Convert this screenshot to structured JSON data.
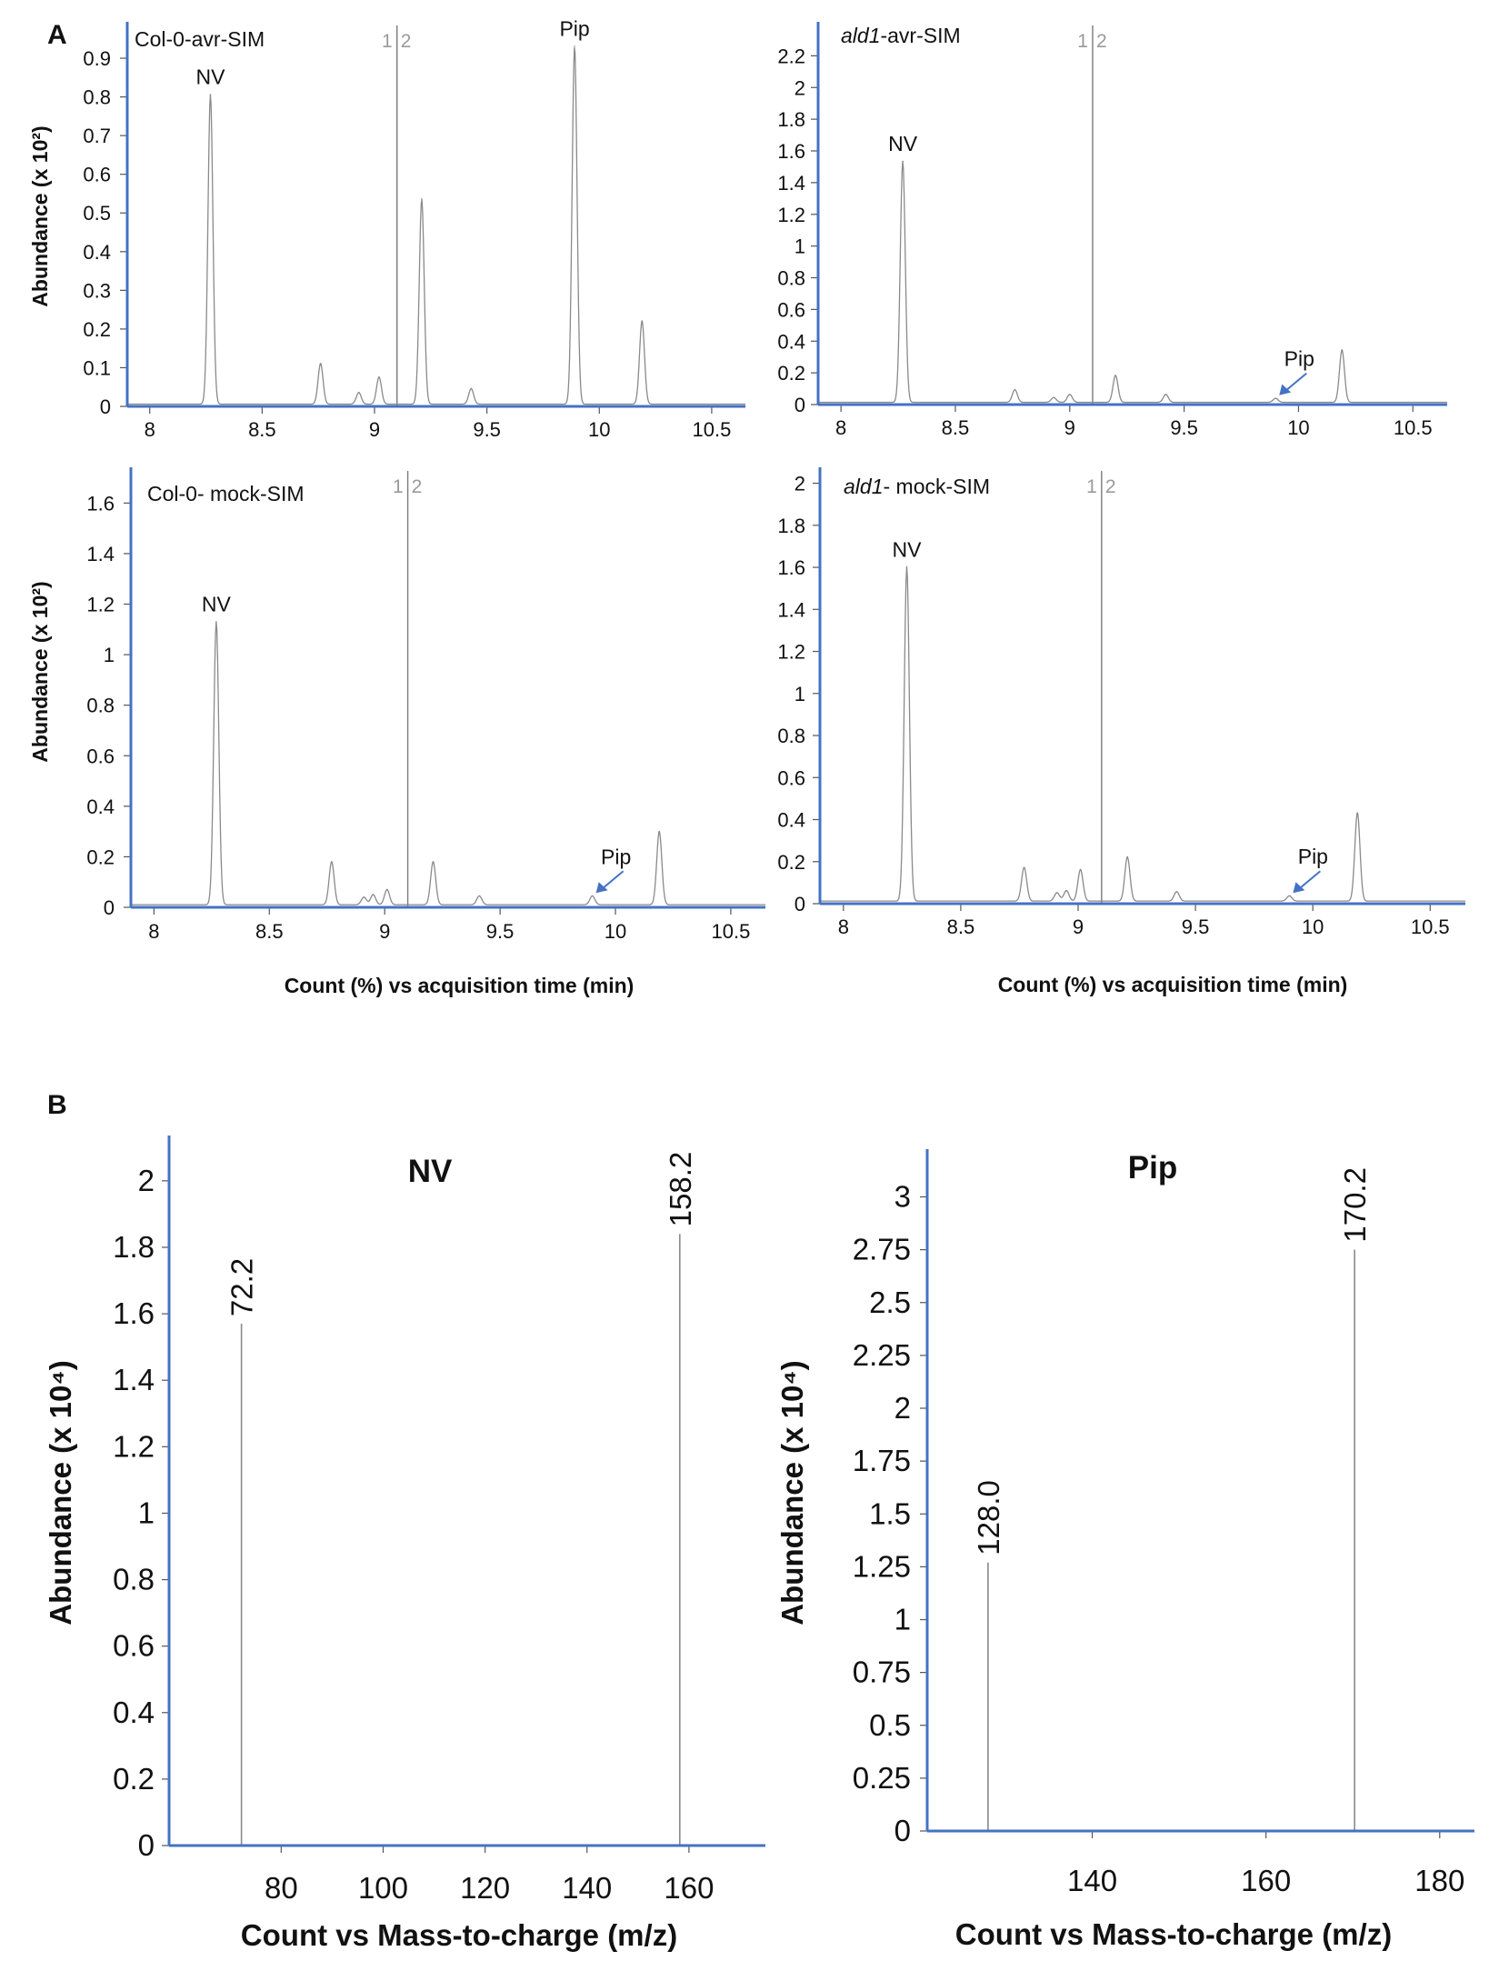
{
  "panel_labels": [
    "A",
    "B"
  ],
  "colors": {
    "axis": "#4472c4",
    "trace": "#8a8a8a",
    "arrow": "#4472c4",
    "marker": "#9a9a9a"
  },
  "marker_labels": [
    "1",
    "2"
  ],
  "chart_data": [
    {
      "type": "line",
      "panel": "A",
      "title": "Col-0-avr-SIM",
      "ylabel": "Abundance (x 10²)",
      "xlabel": "",
      "xlim": [
        7.9,
        10.65
      ],
      "ylim": [
        0,
        0.98
      ],
      "xticks": [
        8,
        8.5,
        9,
        9.5,
        10,
        10.5
      ],
      "yticks": [
        0,
        0.1,
        0.2,
        0.3,
        0.4,
        0.5,
        0.6,
        0.7,
        0.8,
        0.9
      ],
      "marker_x": 9.1,
      "peaks": [
        {
          "x": 8.27,
          "y": 0.8
        },
        {
          "x": 8.76,
          "y": 0.105
        },
        {
          "x": 8.93,
          "y": 0.03
        },
        {
          "x": 9.02,
          "y": 0.07
        },
        {
          "x": 9.21,
          "y": 0.53
        },
        {
          "x": 9.43,
          "y": 0.04
        },
        {
          "x": 9.89,
          "y": 0.925
        },
        {
          "x": 10.19,
          "y": 0.215
        }
      ],
      "annotations": [
        {
          "text": "NV",
          "x": 8.27,
          "y": 0.8,
          "arrow": false
        },
        {
          "text": "Pip",
          "x": 9.89,
          "y": 0.925,
          "arrow": false
        }
      ]
    },
    {
      "type": "line",
      "panel": "A",
      "title": "ald1-avr-SIM",
      "ylabel": "",
      "xlabel": "",
      "xlim": [
        7.9,
        10.65
      ],
      "ylim": [
        0,
        2.38
      ],
      "xticks": [
        8,
        8.5,
        9,
        9.5,
        10,
        10.5
      ],
      "yticks": [
        0,
        0.2,
        0.4,
        0.6,
        0.8,
        1,
        1.2,
        1.4,
        1.6,
        1.8,
        2,
        2.2
      ],
      "marker_x": 9.1,
      "peaks": [
        {
          "x": 8.27,
          "y": 1.52
        },
        {
          "x": 8.76,
          "y": 0.08
        },
        {
          "x": 8.93,
          "y": 0.03
        },
        {
          "x": 9.0,
          "y": 0.05
        },
        {
          "x": 9.2,
          "y": 0.17
        },
        {
          "x": 9.42,
          "y": 0.05
        },
        {
          "x": 9.9,
          "y": 0.025
        },
        {
          "x": 10.19,
          "y": 0.33
        }
      ],
      "annotations": [
        {
          "text": "NV",
          "x": 8.27,
          "y": 1.52,
          "arrow": false
        },
        {
          "text": "Pip",
          "x": 9.9,
          "y": 0.025,
          "arrow": true
        }
      ]
    },
    {
      "type": "line",
      "panel": "A",
      "title": "Col-0- mock-SIM",
      "ylabel": "Abundance (x 10²)",
      "xlabel": "Count (%) vs acquisition time (min)",
      "xlim": [
        7.9,
        10.65
      ],
      "ylim": [
        0,
        1.72
      ],
      "xticks": [
        8,
        8.5,
        9,
        9.5,
        10,
        10.5
      ],
      "yticks": [
        0,
        0.2,
        0.4,
        0.6,
        0.8,
        1,
        1.2,
        1.4,
        1.6
      ],
      "marker_x": 9.1,
      "peaks": [
        {
          "x": 8.27,
          "y": 1.12
        },
        {
          "x": 8.77,
          "y": 0.17
        },
        {
          "x": 8.91,
          "y": 0.03
        },
        {
          "x": 8.95,
          "y": 0.04
        },
        {
          "x": 9.01,
          "y": 0.06
        },
        {
          "x": 9.21,
          "y": 0.17
        },
        {
          "x": 9.41,
          "y": 0.035
        },
        {
          "x": 9.9,
          "y": 0.035
        },
        {
          "x": 10.19,
          "y": 0.29
        }
      ],
      "annotations": [
        {
          "text": "NV",
          "x": 8.27,
          "y": 1.12,
          "arrow": false
        },
        {
          "text": "Pip",
          "x": 9.9,
          "y": 0.035,
          "arrow": true
        }
      ]
    },
    {
      "type": "line",
      "panel": "A",
      "title": "ald1- mock-SIM",
      "ylabel": "",
      "xlabel": "Count (%) vs acquisition time (min)",
      "xlim": [
        7.9,
        10.65
      ],
      "ylim": [
        0,
        2.05
      ],
      "xticks": [
        8,
        8.5,
        9,
        9.5,
        10,
        10.5
      ],
      "yticks": [
        0,
        0.2,
        0.4,
        0.6,
        0.8,
        1,
        1.2,
        1.4,
        1.6,
        1.8,
        2
      ],
      "marker_x": 9.1,
      "peaks": [
        {
          "x": 8.27,
          "y": 1.59
        },
        {
          "x": 8.77,
          "y": 0.16
        },
        {
          "x": 8.91,
          "y": 0.04
        },
        {
          "x": 8.95,
          "y": 0.05
        },
        {
          "x": 9.01,
          "y": 0.15
        },
        {
          "x": 9.21,
          "y": 0.21
        },
        {
          "x": 9.42,
          "y": 0.045
        },
        {
          "x": 9.9,
          "y": 0.025
        },
        {
          "x": 10.19,
          "y": 0.42
        }
      ],
      "annotations": [
        {
          "text": "NV",
          "x": 8.27,
          "y": 1.59,
          "arrow": false
        },
        {
          "text": "Pip",
          "x": 9.9,
          "y": 0.025,
          "arrow": true
        }
      ]
    },
    {
      "type": "bar",
      "panel": "B",
      "title": "NV",
      "ylabel": "Abundance (x 10⁴)",
      "xlabel": "Count vs Mass-to-charge (m/z)",
      "xlim": [
        58,
        175
      ],
      "ylim": [
        0,
        2.12
      ],
      "xticks": [
        80,
        100,
        120,
        140,
        160
      ],
      "yticks": [
        0,
        0.2,
        0.4,
        0.6,
        0.8,
        1,
        1.2,
        1.4,
        1.6,
        1.8,
        2
      ],
      "peaks": [
        {
          "x": 72.2,
          "y": 1.57,
          "label": "72.2"
        },
        {
          "x": 158.2,
          "y": 1.84,
          "label": "158.2"
        }
      ]
    },
    {
      "type": "bar",
      "panel": "B",
      "title": "Pip",
      "ylabel": "Abundance (x 10⁴)",
      "xlabel": "Count vs Mass-to-charge (m/z)",
      "xlim": [
        121,
        184
      ],
      "ylim": [
        0,
        3.2
      ],
      "xticks": [
        140,
        160,
        180
      ],
      "yticks": [
        0,
        0.25,
        0.5,
        0.75,
        1,
        1.25,
        1.5,
        1.75,
        2,
        2.25,
        2.5,
        2.75,
        3
      ],
      "peaks": [
        {
          "x": 128.0,
          "y": 1.27,
          "label": "128.0"
        },
        {
          "x": 170.2,
          "y": 2.75,
          "label": "170.2"
        }
      ]
    }
  ]
}
